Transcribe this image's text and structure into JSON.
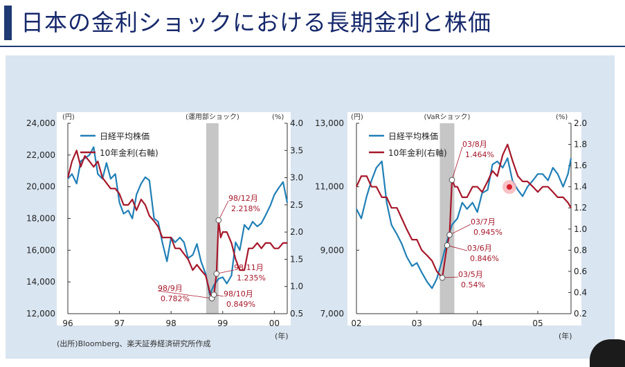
{
  "title": "日本の金利ショックにおける長期金利と株価",
  "source_note": "(出所)Bloomberg、楽天証券経済研究所作成",
  "colors": {
    "stock": "#1f7fb6",
    "rate": "#a5172a",
    "shade": "#c6c6c6",
    "title": "#16286b",
    "panel": "#d9e5f1"
  },
  "chart_data": [
    {
      "type": "line",
      "shade_label": "(運用部ショック)",
      "left_unit": "(円)",
      "right_unit": "(%)",
      "x_unit": "(年)",
      "x_ticks": [
        "96",
        "97",
        "98",
        "99",
        "00"
      ],
      "y_ticks_left": [
        "12,000",
        "14,000",
        "16,000",
        "18,000",
        "20,000",
        "22,000",
        "24,000"
      ],
      "y_ticks_right": [
        "0.5",
        "1.0",
        "1.5",
        "2.0",
        "2.5",
        "3.0",
        "3.5",
        "4.0"
      ],
      "ylim_left": [
        12000,
        24000
      ],
      "ylim_right": [
        0.5,
        4.0
      ],
      "xlim": [
        1996.0,
        2000.25
      ],
      "shade_range": [
        1998.68,
        1998.92
      ],
      "legend": [
        "日経平均株価",
        "10年金利(右軸)"
      ],
      "series": [
        {
          "name": "日経平均株価",
          "axis": "left",
          "x": [
            1996.0,
            1996.08,
            1996.17,
            1996.25,
            1996.33,
            1996.42,
            1996.5,
            1996.58,
            1996.67,
            1996.75,
            1996.83,
            1996.92,
            1997.0,
            1997.08,
            1997.17,
            1997.25,
            1997.33,
            1997.42,
            1997.5,
            1997.58,
            1997.67,
            1997.75,
            1997.83,
            1997.92,
            1998.0,
            1998.08,
            1998.17,
            1998.25,
            1998.33,
            1998.42,
            1998.5,
            1998.58,
            1998.67,
            1998.75,
            1998.83,
            1998.92,
            1999.0,
            1999.08,
            1999.17,
            1999.25,
            1999.33,
            1999.42,
            1999.5,
            1999.58,
            1999.67,
            1999.75,
            1999.83,
            1999.92,
            2000.0,
            2000.08,
            2000.17,
            2000.25
          ],
          "values": [
            20500,
            20800,
            20200,
            21600,
            21800,
            22000,
            22500,
            20800,
            20500,
            21500,
            20500,
            20800,
            19000,
            18300,
            18500,
            18000,
            19500,
            20200,
            20600,
            20400,
            18000,
            17800,
            16500,
            15300,
            16800,
            16500,
            16800,
            16500,
            15500,
            15700,
            16400,
            15300,
            14500,
            13200,
            13800,
            14200,
            14300,
            13900,
            14400,
            16500,
            16000,
            17600,
            17300,
            17800,
            17500,
            17700,
            18200,
            18800,
            19500,
            19900,
            20300,
            19000
          ]
        },
        {
          "name": "10年金利(右軸)",
          "axis": "right",
          "x": [
            1996.0,
            1996.08,
            1996.17,
            1996.25,
            1996.33,
            1996.42,
            1996.5,
            1996.58,
            1996.67,
            1996.75,
            1996.83,
            1996.92,
            1997.0,
            1997.08,
            1997.17,
            1997.25,
            1997.33,
            1997.42,
            1997.5,
            1997.58,
            1997.67,
            1997.75,
            1997.83,
            1997.92,
            1998.0,
            1998.08,
            1998.17,
            1998.25,
            1998.33,
            1998.42,
            1998.5,
            1998.58,
            1998.67,
            1998.75,
            1998.79,
            1998.83,
            1998.88,
            1998.92,
            1998.96,
            1999.0,
            1999.08,
            1999.17,
            1999.25,
            1999.33,
            1999.42,
            1999.5,
            1999.58,
            1999.67,
            1999.75,
            1999.83,
            1999.92,
            2000.0,
            2000.08,
            2000.17,
            2000.25
          ],
          "values": [
            3.0,
            3.3,
            3.5,
            3.2,
            3.4,
            3.3,
            3.2,
            3.3,
            3.0,
            2.9,
            2.8,
            2.8,
            2.7,
            2.5,
            2.5,
            2.6,
            2.4,
            2.6,
            2.5,
            2.3,
            2.2,
            2.1,
            1.9,
            1.9,
            1.9,
            1.7,
            1.7,
            1.6,
            1.5,
            1.3,
            1.4,
            1.3,
            1.2,
            0.9,
            0.782,
            0.849,
            1.235,
            2.218,
            1.9,
            2.0,
            2.0,
            1.8,
            1.5,
            1.3,
            1.3,
            1.7,
            1.7,
            1.8,
            1.7,
            1.8,
            1.8,
            1.7,
            1.7,
            1.8,
            1.8
          ]
        }
      ],
      "annotations": [
        {
          "label": "98/12月",
          "value": "2.218%"
        },
        {
          "label": "98/11月",
          "value": "1.235%"
        },
        {
          "label": "98/9月",
          "value": "0.782%"
        },
        {
          "label": "98/10月",
          "value": "0.849%"
        }
      ]
    },
    {
      "type": "line",
      "shade_label": "(VaRショック)",
      "left_unit": "(円)",
      "right_unit": "(%)",
      "x_unit": "(年)",
      "x_ticks": [
        "02",
        "03",
        "04",
        "05"
      ],
      "y_ticks_left": [
        "7,000",
        "9,000",
        "11,000",
        "13,000"
      ],
      "y_ticks_right": [
        "0.2",
        "0.4",
        "0.6",
        "0.8",
        "1.0",
        "1.2",
        "1.4",
        "1.6",
        "1.8",
        "2.0"
      ],
      "ylim_left": [
        7000,
        13000
      ],
      "ylim_right": [
        0.2,
        2.0
      ],
      "xlim": [
        2002.0,
        2005.55
      ],
      "shade_range": [
        2003.38,
        2003.62
      ],
      "legend": [
        "日経平均株価",
        "10年金利(右軸)"
      ],
      "series": [
        {
          "name": "日経平均株価",
          "axis": "left",
          "x": [
            2002.0,
            2002.08,
            2002.17,
            2002.25,
            2002.33,
            2002.42,
            2002.5,
            2002.58,
            2002.67,
            2002.75,
            2002.83,
            2002.92,
            2003.0,
            2003.08,
            2003.17,
            2003.25,
            2003.33,
            2003.42,
            2003.5,
            2003.58,
            2003.67,
            2003.75,
            2003.83,
            2003.92,
            2004.0,
            2004.08,
            2004.17,
            2004.25,
            2004.33,
            2004.42,
            2004.5,
            2004.58,
            2004.67,
            2004.75,
            2004.83,
            2004.92,
            2005.0,
            2005.08,
            2005.17,
            2005.25,
            2005.33,
            2005.42,
            2005.5,
            2005.55
          ],
          "values": [
            10300,
            10000,
            10700,
            11200,
            11600,
            11800,
            10500,
            9800,
            9500,
            9200,
            8800,
            8500,
            8600,
            8300,
            8000,
            7800,
            8100,
            8700,
            9300,
            9800,
            10000,
            10500,
            10300,
            10500,
            10200,
            10800,
            10900,
            11700,
            11800,
            11600,
            11900,
            11200,
            10900,
            10700,
            11000,
            11200,
            11400,
            11400,
            11200,
            11600,
            11400,
            11000,
            11400,
            11900
          ]
        },
        {
          "name": "10年金利(右軸)",
          "axis": "right",
          "x": [
            2002.0,
            2002.08,
            2002.17,
            2002.25,
            2002.33,
            2002.42,
            2002.5,
            2002.58,
            2002.67,
            2002.75,
            2002.83,
            2002.92,
            2003.0,
            2003.08,
            2003.17,
            2003.25,
            2003.33,
            2003.42,
            2003.5,
            2003.54,
            2003.58,
            2003.63,
            2003.67,
            2003.75,
            2003.83,
            2003.92,
            2004.0,
            2004.08,
            2004.17,
            2004.25,
            2004.33,
            2004.42,
            2004.5,
            2004.58,
            2004.67,
            2004.75,
            2004.83,
            2004.92,
            2005.0,
            2005.08,
            2005.17,
            2005.25,
            2005.33,
            2005.42,
            2005.5,
            2005.55
          ],
          "values": [
            1.4,
            1.5,
            1.5,
            1.4,
            1.4,
            1.3,
            1.3,
            1.2,
            1.2,
            1.1,
            1.0,
            0.9,
            0.9,
            0.8,
            0.75,
            0.7,
            0.6,
            0.54,
            0.846,
            0.945,
            1.464,
            1.4,
            1.4,
            1.3,
            1.3,
            1.4,
            1.4,
            1.35,
            1.45,
            1.55,
            1.5,
            1.7,
            1.8,
            1.65,
            1.5,
            1.45,
            1.45,
            1.4,
            1.35,
            1.4,
            1.4,
            1.35,
            1.3,
            1.3,
            1.25,
            1.2
          ]
        }
      ],
      "annotations": [
        {
          "label": "03/8月",
          "value": "1.464%"
        },
        {
          "label": "03/7月",
          "value": "0.945%"
        },
        {
          "label": "03/6月",
          "value": "0.846%"
        },
        {
          "label": "03/5月",
          "value": "0.54%"
        }
      ]
    }
  ]
}
